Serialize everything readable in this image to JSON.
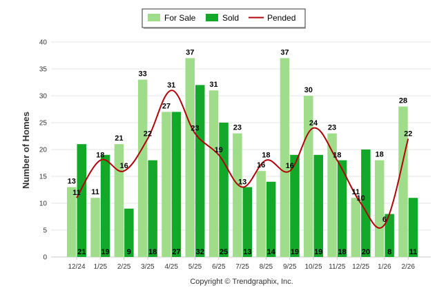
{
  "chart_data": {
    "type": "bar",
    "title": "",
    "xlabel": "",
    "ylabel": "Number of Homes",
    "ylim": [
      0,
      40
    ],
    "yticks": [
      0,
      5,
      10,
      15,
      20,
      25,
      30,
      35,
      40
    ],
    "categories": [
      "12/24",
      "1/25",
      "2/25",
      "3/25",
      "4/25",
      "5/25",
      "6/25",
      "7/25",
      "8/25",
      "9/25",
      "10/25",
      "11/25",
      "12/25",
      "1/26",
      "2/26"
    ],
    "series": [
      {
        "name": "For Sale",
        "type": "bar",
        "color": "#a0dd8a",
        "values": [
          13,
          11,
          21,
          33,
          27,
          37,
          31,
          23,
          16,
          37,
          30,
          23,
          11,
          18,
          28
        ]
      },
      {
        "name": "Sold",
        "type": "bar",
        "color": "#14a82b",
        "values": [
          21,
          19,
          9,
          18,
          27,
          32,
          25,
          13,
          14,
          19,
          19,
          18,
          20,
          8,
          11
        ]
      },
      {
        "name": "Pended",
        "type": "line",
        "color": "#b0000a",
        "values": [
          11,
          18,
          16,
          22,
          31,
          23,
          19,
          13,
          18,
          16,
          24,
          18,
          10,
          6,
          22
        ]
      }
    ],
    "legend": "top-center",
    "credit": "Copyright © Trendgraphix, Inc."
  }
}
